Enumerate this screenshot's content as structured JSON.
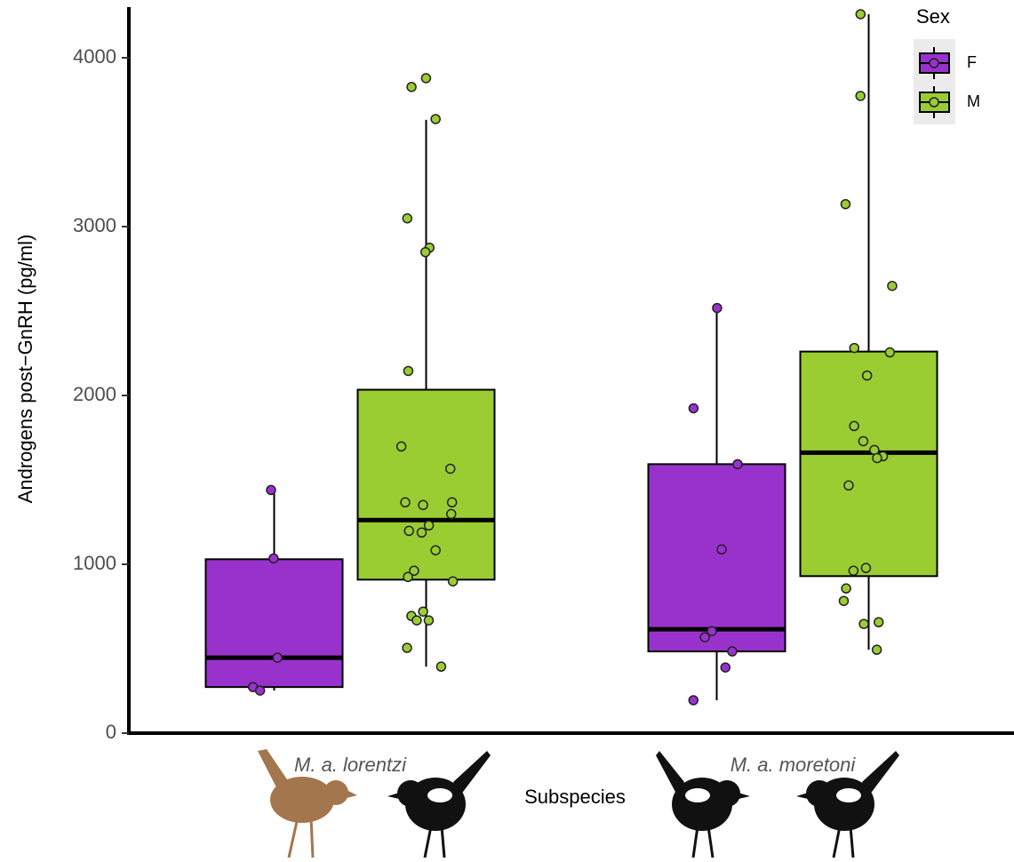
{
  "chart_data": {
    "type": "box",
    "y_label": "Androgens post−GnRH (pg/ml)",
    "x_label": "Subspecies",
    "categories": [
      "M. a. lorentzi",
      "M. a. moretoni"
    ],
    "ylim": [
      0,
      4300
    ],
    "yticks": [
      0,
      1000,
      2000,
      3000,
      4000
    ],
    "legend_title": "Sex",
    "series": [
      {
        "name": "F",
        "color": "#9932cc",
        "boxes": [
          {
            "whisker_low": 252,
            "q1": 273,
            "median": 447,
            "q3": 1030,
            "whisker_high": 1440,
            "points": [
              1035,
              447,
              273,
              252,
              1440
            ]
          },
          {
            "whisker_low": 195,
            "q1": 484,
            "median": 615,
            "q3": 1593,
            "whisker_high": 2512,
            "points": [
              2518,
              1924,
              1593,
              1088,
              604,
              568,
              484,
              389,
              195
            ]
          }
        ]
      },
      {
        "name": "M",
        "color": "#9acd32",
        "boxes": [
          {
            "whisker_low": 394,
            "q1": 909,
            "median": 1262,
            "q3": 2034,
            "whisker_high": 3632,
            "points": [
              3879,
              3827,
              3637,
              3049,
              2875,
              2849,
              2145,
              1698,
              1566,
              1367,
              1367,
              1351,
              1298,
              1198,
              1188,
              1230,
              1083,
              962,
              925,
              899,
              720,
              694,
              668,
              668,
              505,
              394
            ]
          },
          {
            "whisker_low": 494,
            "q1": 930,
            "median": 1661,
            "q3": 2260,
            "whisker_high": 4258,
            "points": [
              4258,
              3774,
              3133,
              2649,
              2281,
              2255,
              2118,
              1819,
              1677,
              1729,
              1640,
              1629,
              1467,
              962,
              978,
              857,
              783,
              647,
              657,
              494
            ]
          }
        ]
      }
    ]
  }
}
